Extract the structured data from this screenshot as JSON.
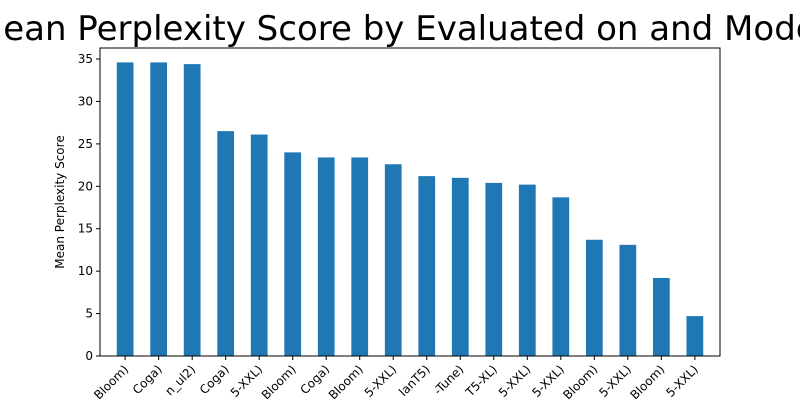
{
  "chart_data": {
    "type": "bar",
    "title": "Mean Perplexity Score by Evaluated on and Model",
    "xlabel": "",
    "ylabel": "Mean Perplexity Score",
    "ylim": [
      0,
      36.3
    ],
    "yticks": [
      0,
      5,
      10,
      15,
      20,
      25,
      30,
      35
    ],
    "ytick_labels": [
      "0",
      "5",
      "10",
      "15",
      "20",
      "25",
      "30",
      "35"
    ],
    "categories": [
      "Bloom)",
      "Coga)",
      "n_ul2)",
      "Coga)",
      "5-XXL)",
      "Bloom)",
      "Coga)",
      "Bloom)",
      "5-XXL)",
      "lanT5)",
      "-Tune)",
      "T5-XL)",
      "5-XXL)",
      "5-XXL)",
      "Bloom)",
      "5-XXL)",
      "Bloom)",
      "5-XXL)"
    ],
    "values": [
      34.6,
      34.6,
      34.4,
      26.5,
      26.1,
      24.0,
      23.4,
      23.4,
      22.6,
      21.2,
      21.0,
      20.4,
      20.2,
      18.7,
      13.7,
      13.1,
      9.2,
      4.7
    ],
    "colors": {
      "bar": "#1f77b4",
      "axis": "#000000",
      "background": "#ffffff"
    }
  }
}
